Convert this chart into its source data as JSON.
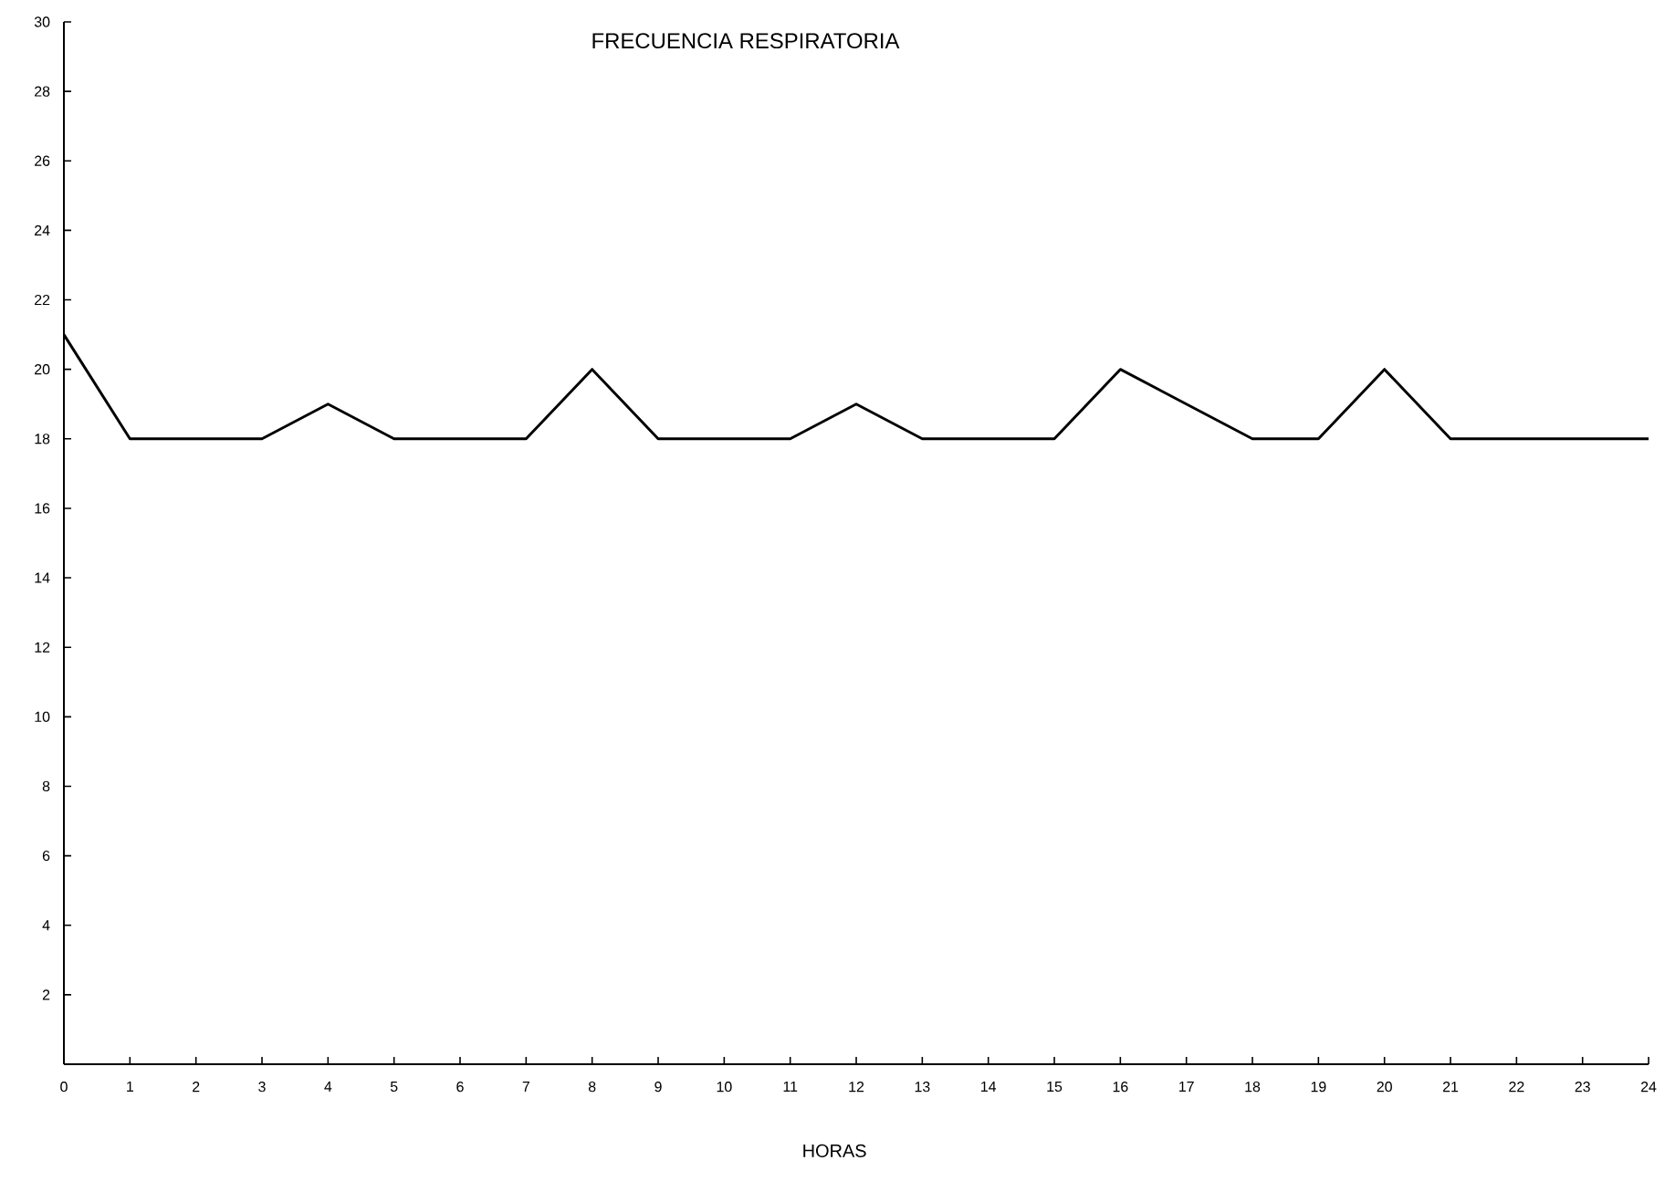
{
  "chart_data": {
    "type": "line",
    "title": "FRECUENCIA RESPIRATORIA",
    "xlabel": "HORAS",
    "x": [
      0,
      1,
      2,
      3,
      4,
      5,
      6,
      7,
      8,
      9,
      10,
      11,
      12,
      13,
      14,
      15,
      16,
      17,
      18,
      19,
      20,
      21,
      22,
      23,
      24
    ],
    "series": [
      {
        "color": "#000000",
        "values": [
          21,
          18,
          18,
          18,
          19,
          18,
          18,
          18,
          20,
          18,
          18,
          18,
          19,
          18,
          18,
          18,
          20,
          19,
          18,
          18,
          20,
          18,
          18,
          18,
          18
        ]
      }
    ],
    "xlim": [
      0,
      24
    ],
    "xticks": [
      0,
      1,
      2,
      3,
      4,
      5,
      6,
      7,
      8,
      9,
      10,
      11,
      12,
      13,
      14,
      15,
      16,
      17,
      18,
      19,
      20,
      21,
      22,
      23,
      24
    ],
    "ylim": [
      0,
      30
    ],
    "yticks": [
      2,
      4,
      6,
      8,
      10,
      12,
      14,
      16,
      18,
      20,
      22,
      24,
      26,
      28,
      30
    ],
    "grid": false,
    "marker": "none",
    "line_style": "solid"
  }
}
